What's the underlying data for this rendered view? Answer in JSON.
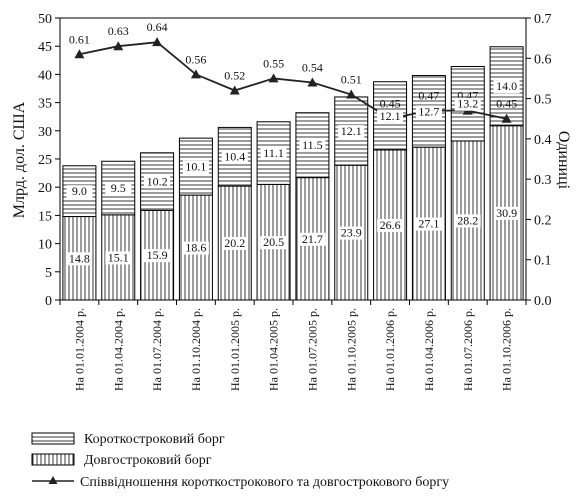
{
  "chart_data": {
    "type": "bar",
    "stacked": true,
    "secondary_axis": true,
    "ylabel": "Млрд. дол. США",
    "y2label": "Одиниці",
    "ylim": [
      0,
      50
    ],
    "y_ticks": [
      "0",
      "5",
      "10",
      "15",
      "20",
      "25",
      "30",
      "35",
      "40",
      "45",
      "50"
    ],
    "y2lim": [
      0,
      0.7
    ],
    "y2_ticks": [
      "0.0",
      "0.1",
      "0.2",
      "0.3",
      "0.4",
      "0.5",
      "0.6",
      "0.7"
    ],
    "categories": [
      "На 01.01.2004 р.",
      "На 01.04.2004 р.",
      "На 01.07.2004 р.",
      "На 01.10.2004 р.",
      "На 01.01.2005 р.",
      "На 01.04.2005 р.",
      "На 01.07.2005 р.",
      "На 01.10.2005 р.",
      "На 01.01.2006 р.",
      "На 01.04.2006 р.",
      "На 01.07.2006 р.",
      "На 01.10.2006 р."
    ],
    "series": [
      {
        "name": "Довгостроковий борг",
        "pattern": "vertical-hatch",
        "values": [
          14.8,
          15.1,
          15.9,
          18.6,
          20.2,
          20.5,
          21.7,
          23.9,
          26.6,
          27.1,
          28.2,
          30.9
        ],
        "labels": [
          "14.8",
          "15.1",
          "15.9",
          "18.6",
          "20.2",
          "20.5",
          "21.7",
          "23.9",
          "26.6",
          "27.1",
          "28.2",
          "30.9"
        ]
      },
      {
        "name": "Короткостроковий борг",
        "pattern": "horizontal-hatch",
        "values": [
          9.0,
          9.5,
          10.2,
          10.1,
          10.4,
          11.1,
          11.5,
          12.1,
          12.1,
          12.7,
          13.2,
          14.0
        ],
        "labels": [
          "9.0",
          "9.5",
          "10.2",
          "10.1",
          "10.4",
          "11.1",
          "11.5",
          "12.1",
          "12.1",
          "12.7",
          "13.2",
          "14.0"
        ]
      },
      {
        "name": "Співвідношення короткострокового та довгострокового боргу",
        "type": "line",
        "axis": "secondary",
        "marker": "triangle",
        "values": [
          0.61,
          0.63,
          0.64,
          0.56,
          0.52,
          0.55,
          0.54,
          0.51,
          0.45,
          0.47,
          0.47,
          0.45
        ],
        "labels": [
          "0.61",
          "0.63",
          "0.64",
          "0.56",
          "0.52",
          "0.55",
          "0.54",
          "0.51",
          "0.45",
          "0.47",
          "0.47",
          "0.45"
        ]
      }
    ],
    "legend": [
      {
        "label": "Короткостроковий борг",
        "pattern": "horizontal-hatch"
      },
      {
        "label": "Довгостроковий борг",
        "pattern": "vertical-hatch"
      },
      {
        "label": "Співвідношення короткострокового та довгострокового боргу",
        "pattern": "line-triangle"
      }
    ],
    "legend_position": "bottom",
    "grid": false
  }
}
